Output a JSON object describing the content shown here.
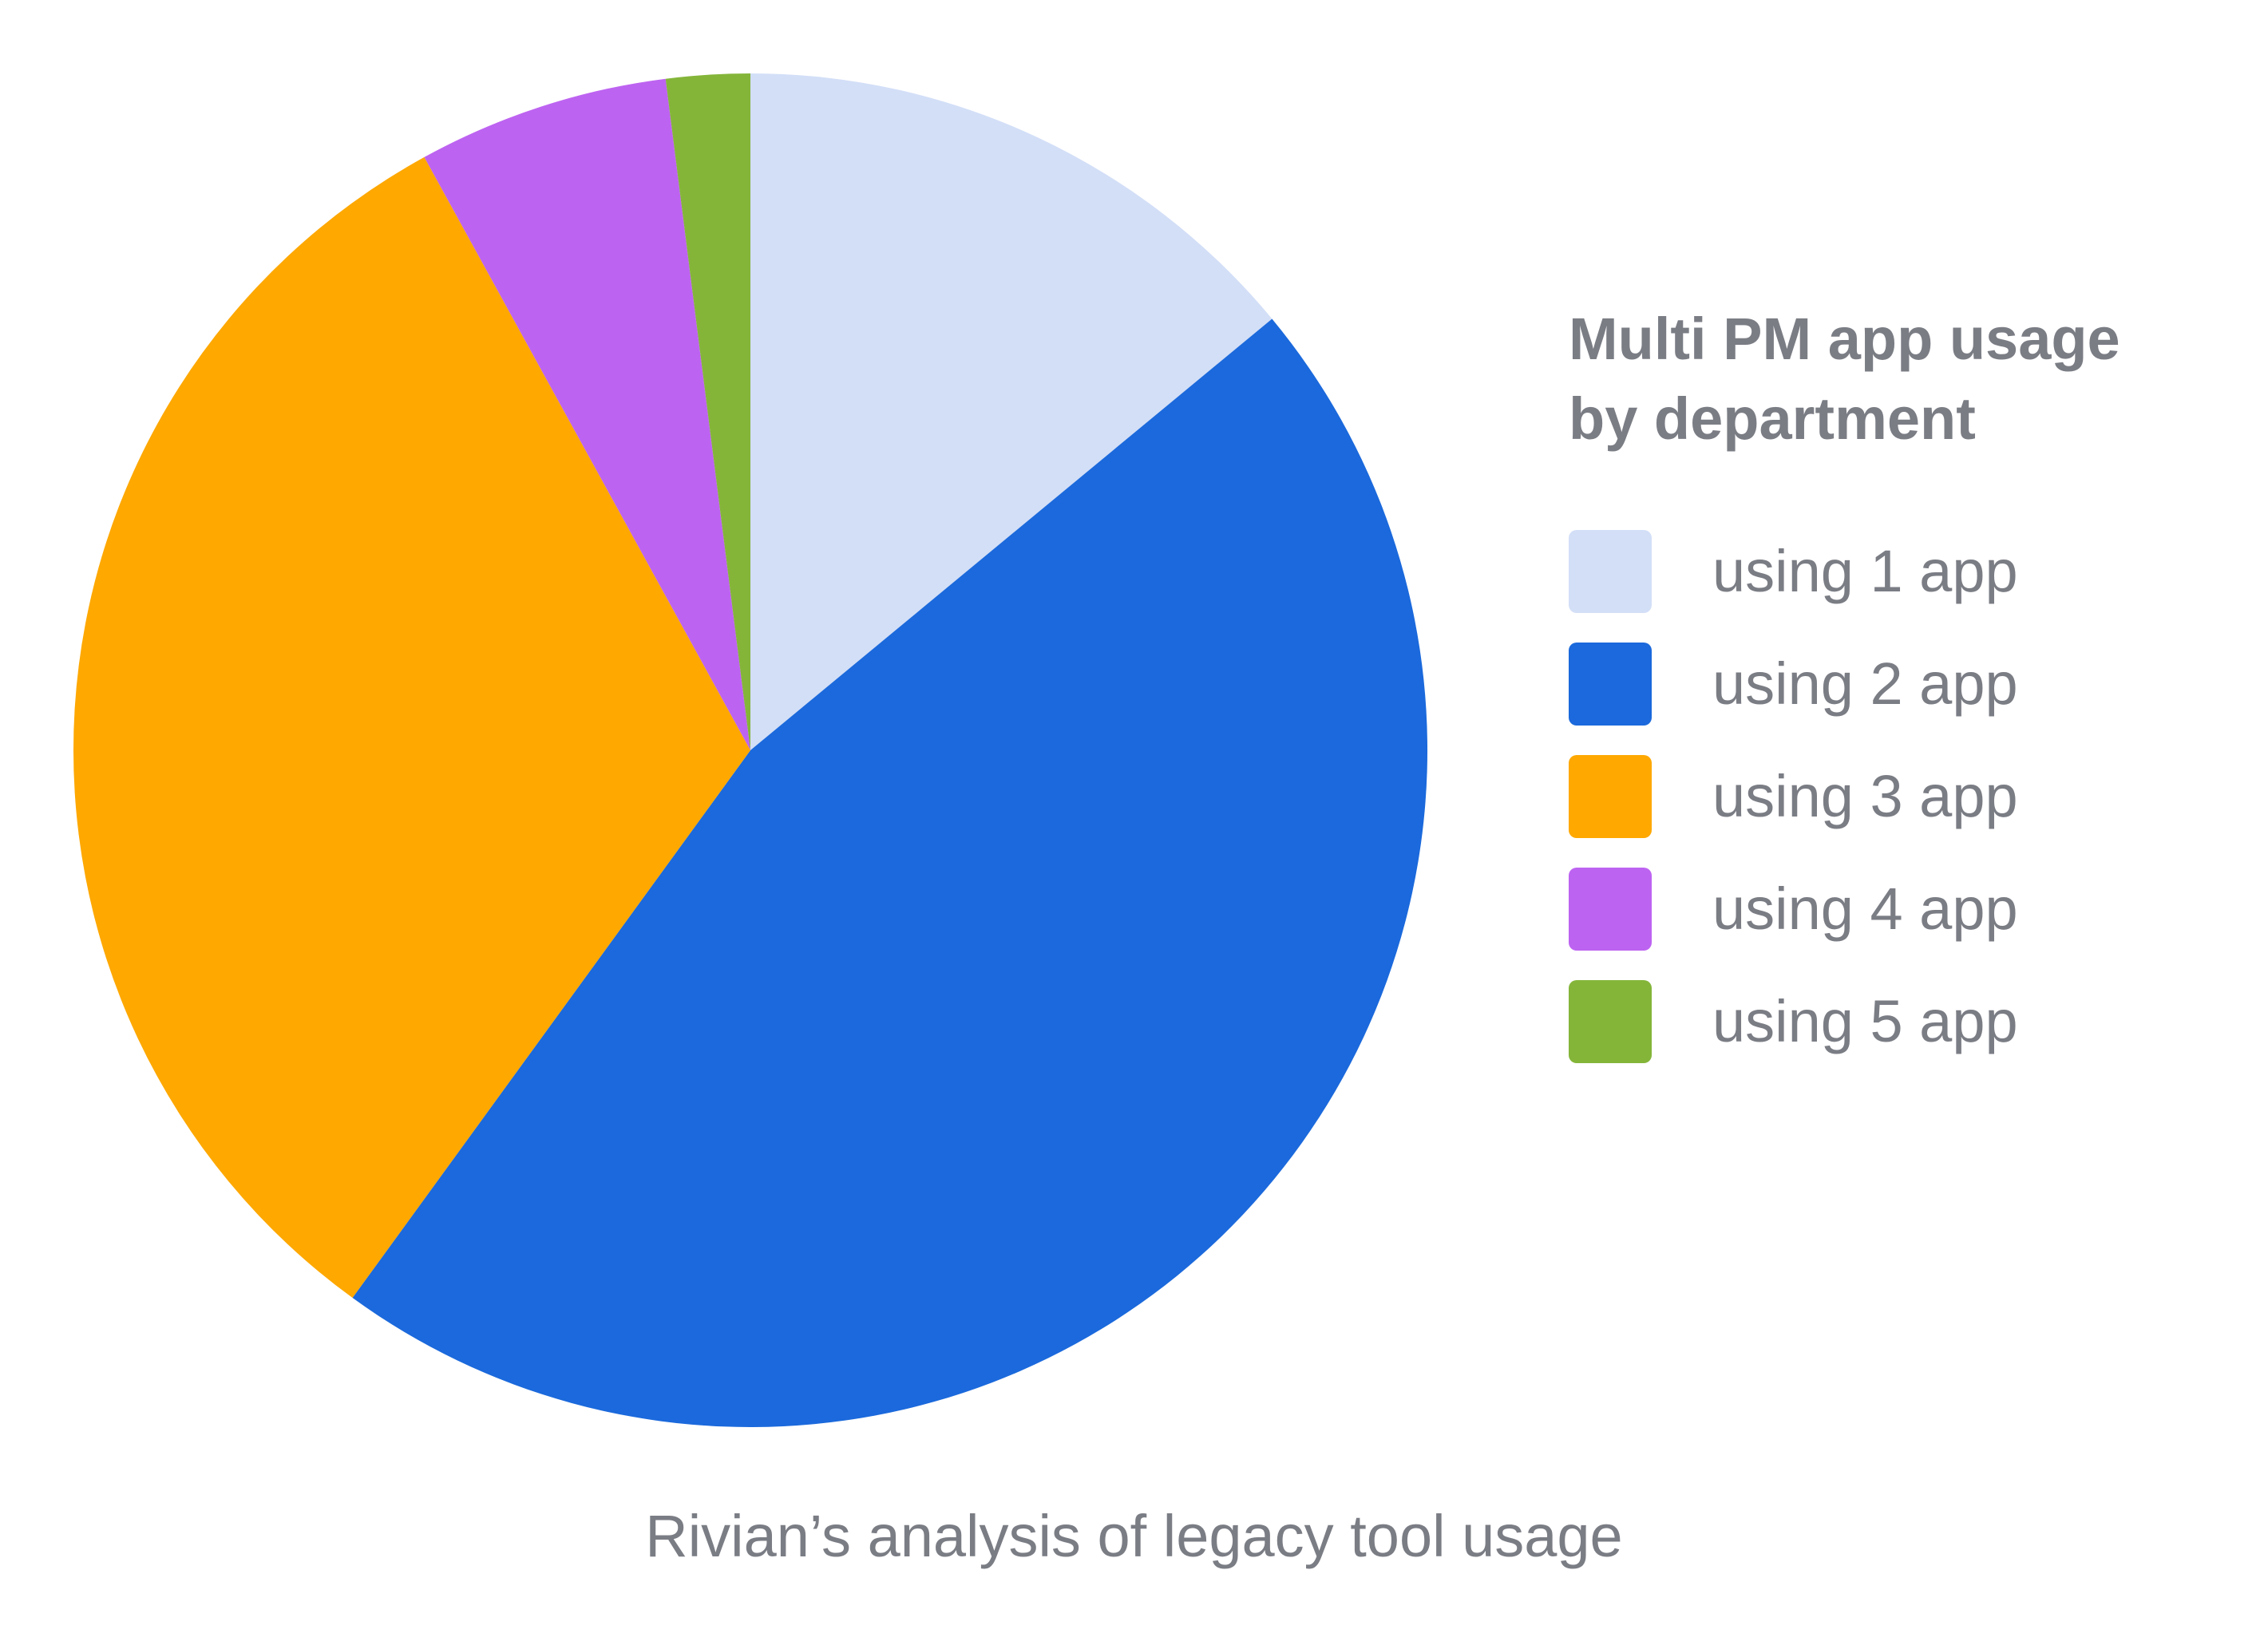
{
  "chart_data": {
    "type": "pie",
    "title": "Multi PM app usage by department",
    "title_lines": [
      "Multi PM app usage",
      "by department"
    ],
    "caption": "Rivian’s analysis of legacy tool usage",
    "legend_position": "right",
    "categories": [
      "using 1 app",
      "using 2 app",
      "using 3 app",
      "using 4 app",
      "using 5 app"
    ],
    "values": [
      14,
      46,
      32,
      6,
      2
    ],
    "colors": [
      "#d3dff7",
      "#1b69dc",
      "#fea800",
      "#bd63f1",
      "#84b539"
    ],
    "start_angle_deg": 0,
    "direction": "clockwise"
  }
}
